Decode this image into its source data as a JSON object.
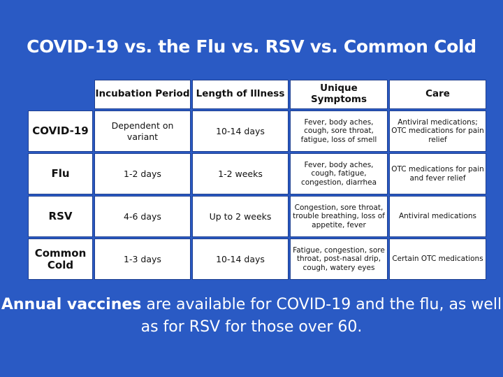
{
  "title": "COVID-19 vs. the Flu vs. RSV vs. Common Cold",
  "table": {
    "headers": [
      "Incubation Period",
      "Length of Illness",
      "Unique Symptoms",
      "Care"
    ],
    "rows": [
      {
        "label": "COVID-19",
        "incubation": "Dependent on variant",
        "length": "10-14 days",
        "symptoms": "Fever, body aches, cough, sore throat, fatigue, loss of smell",
        "care": "Antiviral medications; OTC medications for pain relief"
      },
      {
        "label": "Flu",
        "incubation": "1-2 days",
        "length": "1-2 weeks",
        "symptoms": "Fever, body aches, cough, fatigue, congestion, diarrhea",
        "care": "OTC medications for pain and fever relief"
      },
      {
        "label": "RSV",
        "incubation": "4-6 days",
        "length": "Up to 2 weeks",
        "symptoms": "Congestion, sore throat, trouble breathing, loss of appetite, fever",
        "care": "Antiviral medications"
      },
      {
        "label": "Common Cold",
        "incubation": "1-3 days",
        "length": "10-14 days",
        "symptoms": "Fatigue, congestion, sore throat, post-nasal drip, cough, watery eyes",
        "care": "Certain OTC medications"
      }
    ]
  },
  "footer": {
    "bold": "Annual vaccines",
    "rest": " are available for COVID-19 and the flu, as well as for RSV for those over 60."
  }
}
